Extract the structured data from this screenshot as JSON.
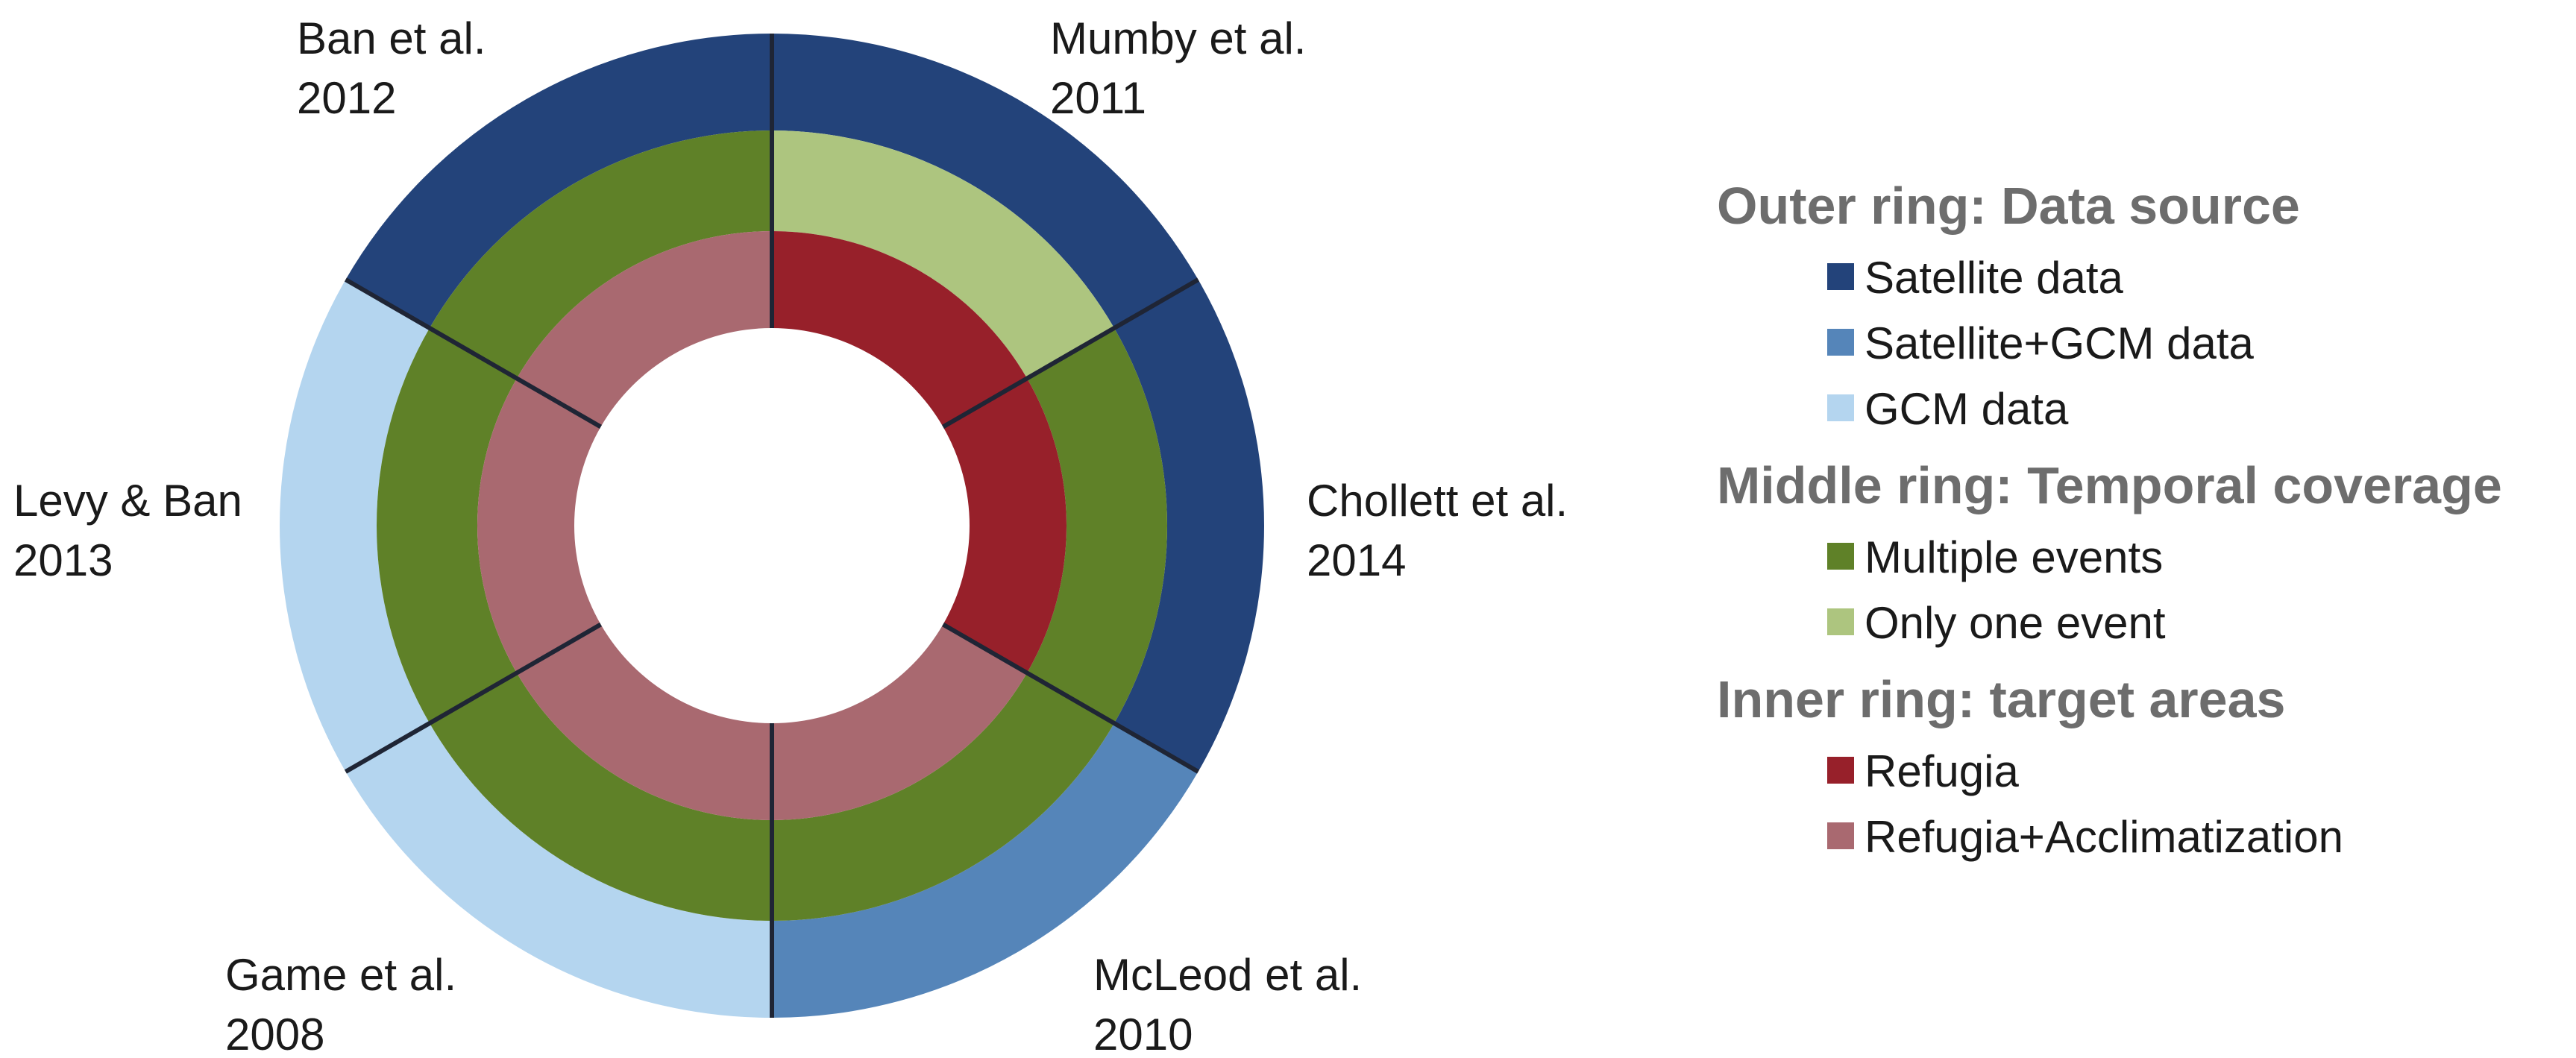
{
  "chart_data": {
    "type": "donut",
    "segments": [
      {
        "author": "Mumby et al.",
        "year": "2011",
        "outer": "Satellite data",
        "middle": "Only one event",
        "inner": "Refugia"
      },
      {
        "author": "Chollett et al.",
        "year": "2014",
        "outer": "Satellite data",
        "middle": "Multiple events",
        "inner": "Refugia"
      },
      {
        "author": "McLeod et al.",
        "year": "2010",
        "outer": "Satellite+GCM data",
        "middle": "Multiple events",
        "inner": "Refugia+Acclimatization"
      },
      {
        "author": "Game et al.",
        "year": "2008",
        "outer": "GCM data",
        "middle": "Multiple events",
        "inner": "Refugia+Acclimatization"
      },
      {
        "author": "Levy & Ban",
        "year": "2013",
        "outer": "GCM data",
        "middle": "Multiple events",
        "inner": "Refugia+Acclimatization"
      },
      {
        "author": "Ban et al.",
        "year": "2012",
        "outer": "Satellite data",
        "middle": "Multiple events",
        "inner": "Refugia+Acclimatization"
      }
    ],
    "legend": [
      {
        "title": "Outer ring: Data source",
        "items": [
          {
            "label": "Satellite data",
            "color": "#23437a"
          },
          {
            "label": "Satellite+GCM data",
            "color": "#5585b9"
          },
          {
            "label": "GCM data",
            "color": "#b4d5ef"
          }
        ]
      },
      {
        "title": "Middle ring: Temporal coverage",
        "items": [
          {
            "label": "Multiple events",
            "color": "#5f8128"
          },
          {
            "label": "Only one event",
            "color": "#adc57f"
          }
        ]
      },
      {
        "title": "Inner ring: target areas",
        "items": [
          {
            "label": "Refugia",
            "color": "#97202a"
          },
          {
            "label": "Refugia+Acclimatization",
            "color": "#a96970"
          }
        ]
      }
    ]
  }
}
